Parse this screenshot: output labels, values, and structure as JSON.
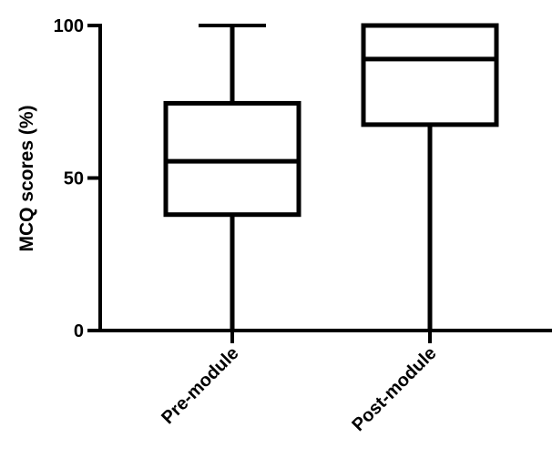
{
  "chart_data": {
    "type": "box",
    "title": "",
    "xlabel": "",
    "ylabel": "MCQ scores (%)",
    "ylim": [
      0,
      100
    ],
    "yticks": [
      0,
      50,
      100
    ],
    "categories": [
      "Pre-module",
      "Post-module"
    ],
    "boxes": [
      {
        "min": 0,
        "q1": 38,
        "median": 55.5,
        "q3": 74.5,
        "max": 100
      },
      {
        "min": 0,
        "q1": 67.5,
        "median": 89,
        "q3": 100,
        "max": 100
      }
    ],
    "grid": false,
    "color": "#000000"
  }
}
